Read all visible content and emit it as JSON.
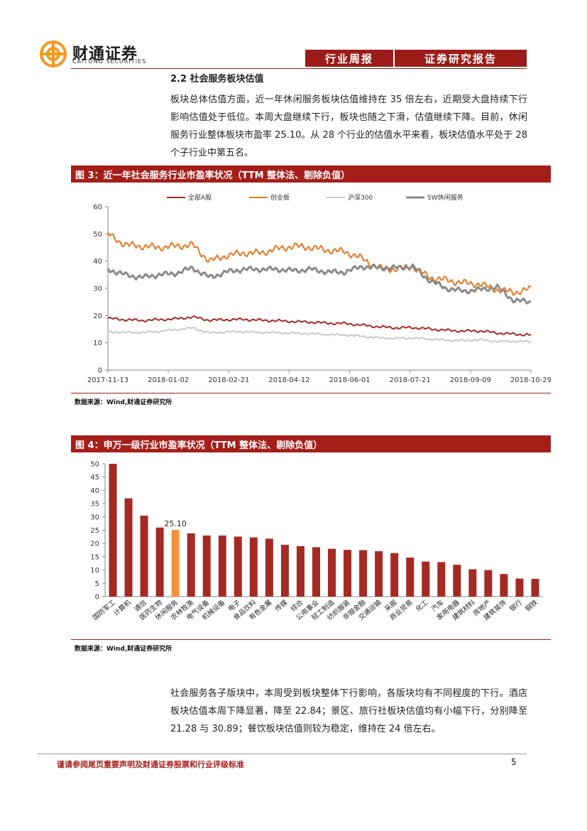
{
  "header": {
    "logo_cn": "财通证券",
    "logo_en": "CAITONG SECURITIES",
    "tag1": "行业周报",
    "tag2": "证券研究报告"
  },
  "section": {
    "title": "2.2  社会服务板块估值",
    "para1": "板块总体估值方面，近一年休闲服务板块估值维持在 35 倍左右，近期受大盘持续下行影响估值处于低位。本周大盘继续下行，板块也随之下滑，估值继续下降。目前，休闲服务行业整体板块市盈率 25.10。从 28 个行业的估值水平来看，板块估值水平处于 28 个子行业中第五名。",
    "para2": "社会服务各子版块中，本周受到板块整体下行影响，各版块均有不同程度的下行。酒店板块估值本周下降显著，降至 22.84；景区、旅行社板块估值均有小幅下行，分别降至 21.28 与 30.89；餐饮板块估值则较为稳定，维持在 24 倍左右。"
  },
  "figure3": {
    "title": "图 3：近一年社会服务行业市盈率状况（TTM 整体法、剔除负值）",
    "source": "数据来源：Wind,财通证券研究所"
  },
  "figure4": {
    "title": "图 4：申万一级行业市盈率状况（TTM 整体法、剔除负值）",
    "source": "数据来源：Wind,财通证券研究所"
  },
  "footer": {
    "disclaimer": "请务必阅读正文之后的信息披露和法律声明",
    "disclaimer_full": "谨请参阅尾页重要声明及财通证券股票和行业评级标准",
    "page": "5"
  },
  "colors": {
    "brand_red": "#a51e1a",
    "bar_red": "#a52a24",
    "highlight_orange": "#f0933a",
    "logo_orange": "#f29a1f"
  },
  "chart_data": [
    {
      "type": "line",
      "x": [
        "2017-11-13",
        "2017-11-27",
        "2017-12-11",
        "2017-12-25",
        "2018-01-08",
        "2018-01-22",
        "2018-02-05",
        "2018-02-19",
        "2018-03-05",
        "2018-03-19",
        "2018-04-02",
        "2018-04-16",
        "2018-04-30",
        "2018-05-14",
        "2018-05-28",
        "2018-06-11",
        "2018-06-25",
        "2018-07-09",
        "2018-07-23",
        "2018-08-06",
        "2018-08-20",
        "2018-09-03",
        "2018-09-17",
        "2018-10-01",
        "2018-10-15",
        "2018-10-29"
      ],
      "xticks": [
        "2017-11-13",
        "2018-01-02",
        "2018-02-21",
        "2018-04-12",
        "2018-06-01",
        "2018-07-21",
        "2018-09-09",
        "2018-10-29"
      ],
      "yticks": [
        0,
        10,
        20,
        30,
        40,
        50,
        60
      ],
      "ylim": [
        0,
        60
      ],
      "legend_position": "top",
      "series": [
        {
          "name": "全部A股",
          "color": "#a52a2a",
          "width": 2,
          "values": [
            19,
            18.5,
            18.2,
            18.5,
            18.8,
            19.5,
            18.3,
            18.5,
            18.6,
            18.3,
            18.1,
            17.8,
            17.6,
            17.2,
            17.1,
            16.5,
            15.9,
            15.5,
            15.6,
            15.1,
            14.6,
            14.3,
            14.4,
            13.6,
            13.2,
            12.9
          ]
        },
        {
          "name": "创业板",
          "color": "#e87722",
          "width": 2,
          "values": [
            50,
            46,
            45.5,
            45,
            45.5,
            46,
            40,
            42,
            43,
            43,
            44.5,
            45.5,
            45,
            44,
            43.5,
            41,
            37.5,
            37,
            38,
            34,
            33,
            32,
            31.5,
            29.5,
            28.5,
            29.8
          ]
        },
        {
          "name": "沪深300",
          "color": "#c8c8c8",
          "width": 2,
          "values": [
            14,
            13.8,
            13.8,
            14.2,
            14.8,
            15.5,
            13.6,
            14,
            14.1,
            13.8,
            13.7,
            13.5,
            13.4,
            13,
            12.9,
            12.4,
            11.8,
            11.6,
            11.8,
            11.4,
            11,
            10.8,
            11.1,
            10.5,
            10.6,
            10.4
          ]
        },
        {
          "name": "SW休闲服务",
          "color": "#8a8a8a",
          "width": 3,
          "values": [
            37,
            35,
            34,
            35,
            35.5,
            37.5,
            34,
            36,
            37,
            37,
            37,
            36.5,
            37,
            36,
            36,
            38,
            37.5,
            37.5,
            38,
            33,
            30,
            29,
            29.5,
            30.5,
            25.5,
            25.1
          ]
        }
      ]
    },
    {
      "type": "bar",
      "categories": [
        "国防军工",
        "计算机",
        "通信",
        "医药生物",
        "休闲服务",
        "农林牧渔",
        "电气设备",
        "机械设备",
        "电子",
        "食品饮料",
        "有色金属",
        "传媒",
        "综合",
        "公用事业",
        "轻工制造",
        "纺织服装",
        "非银金融",
        "交通运输",
        "采掘",
        "商业贸易",
        "化工",
        "汽车",
        "家用电器",
        "建筑材料",
        "房地产",
        "建筑装饰",
        "银行",
        "钢铁"
      ],
      "values": [
        50,
        37,
        30.5,
        26,
        25.1,
        23.8,
        23,
        23,
        22.6,
        22.3,
        21.8,
        19.5,
        19,
        18.6,
        18,
        17.6,
        17.5,
        17.1,
        16.4,
        14.7,
        13.2,
        13,
        12,
        10.3,
        10,
        8.5,
        6.8,
        6.7
      ],
      "highlight_index": 4,
      "highlight_label": "25.10",
      "ylim": [
        0,
        50
      ],
      "yticks": [
        0,
        5,
        10,
        15,
        20,
        25,
        30,
        35,
        40,
        45,
        50
      ]
    }
  ]
}
